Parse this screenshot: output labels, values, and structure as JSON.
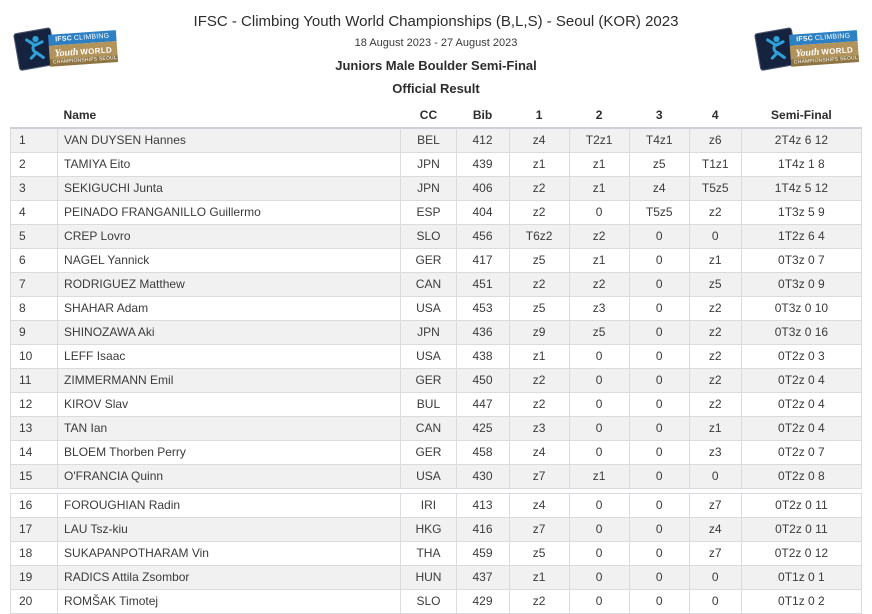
{
  "event": {
    "title": "IFSC - Climbing Youth World Championships (B,L,S) - Seoul (KOR) 2023",
    "dates": "18 August 2023 - 27 August 2023",
    "round": "Juniors Male Boulder Semi-Final",
    "result_type": "Official Result"
  },
  "logo": {
    "line1_bold": "IFSC",
    "line1_rest": "CLIMBING",
    "line2_script": "Youth",
    "line2_bold": "WORLD",
    "line3": "CHAMPIONSHIPS SEOUL 2023",
    "colors": {
      "navy": "#15233f",
      "blue_bar": "#2d80c3",
      "gold_bar": "#b2935a",
      "dark_gold_bar": "#8d7440",
      "climber_blue": "#2fa0d8"
    }
  },
  "table": {
    "columns": [
      "",
      "Name",
      "CC",
      "Bib",
      "1",
      "2",
      "3",
      "4",
      "Semi-Final"
    ],
    "row_stripe_color": "#f1f1f2",
    "groups": [
      {
        "rows": [
          {
            "rank": 1,
            "name": "VAN DUYSEN Hannes",
            "cc": "BEL",
            "bib": "412",
            "p1": "z4",
            "p2": "T2z1",
            "p3": "T4z1",
            "p4": "z6",
            "semi": "2T4z 6 12"
          },
          {
            "rank": 2,
            "name": "TAMIYA Eito",
            "cc": "JPN",
            "bib": "439",
            "p1": "z1",
            "p2": "z1",
            "p3": "z5",
            "p4": "T1z1",
            "semi": "1T4z 1 8"
          },
          {
            "rank": 3,
            "name": "SEKIGUCHI Junta",
            "cc": "JPN",
            "bib": "406",
            "p1": "z2",
            "p2": "z1",
            "p3": "z4",
            "p4": "T5z5",
            "semi": "1T4z 5 12"
          },
          {
            "rank": 4,
            "name": "PEINADO FRANGANILLO Guillermo",
            "cc": "ESP",
            "bib": "404",
            "p1": "z2",
            "p2": "0",
            "p3": "T5z5",
            "p4": "z2",
            "semi": "1T3z 5 9"
          },
          {
            "rank": 5,
            "name": "CREP Lovro",
            "cc": "SLO",
            "bib": "456",
            "p1": "T6z2",
            "p2": "z2",
            "p3": "0",
            "p4": "0",
            "semi": "1T2z 6 4"
          },
          {
            "rank": 6,
            "name": "NAGEL Yannick",
            "cc": "GER",
            "bib": "417",
            "p1": "z5",
            "p2": "z1",
            "p3": "0",
            "p4": "z1",
            "semi": "0T3z 0 7"
          },
          {
            "rank": 7,
            "name": "RODRIGUEZ Matthew",
            "cc": "CAN",
            "bib": "451",
            "p1": "z2",
            "p2": "z2",
            "p3": "0",
            "p4": "z5",
            "semi": "0T3z 0 9"
          },
          {
            "rank": 8,
            "name": "SHAHAR Adam",
            "cc": "USA",
            "bib": "453",
            "p1": "z5",
            "p2": "z3",
            "p3": "0",
            "p4": "z2",
            "semi": "0T3z 0 10"
          },
          {
            "rank": 9,
            "name": "SHINOZAWA Aki",
            "cc": "JPN",
            "bib": "436",
            "p1": "z9",
            "p2": "z5",
            "p3": "0",
            "p4": "z2",
            "semi": "0T3z 0 16"
          },
          {
            "rank": 10,
            "name": "LEFF Isaac",
            "cc": "USA",
            "bib": "438",
            "p1": "z1",
            "p2": "0",
            "p3": "0",
            "p4": "z2",
            "semi": "0T2z 0 3"
          },
          {
            "rank": 11,
            "name": "ZIMMERMANN Emil",
            "cc": "GER",
            "bib": "450",
            "p1": "z2",
            "p2": "0",
            "p3": "0",
            "p4": "z2",
            "semi": "0T2z 0 4"
          },
          {
            "rank": 12,
            "name": "KIROV Slav",
            "cc": "BUL",
            "bib": "447",
            "p1": "z2",
            "p2": "0",
            "p3": "0",
            "p4": "z2",
            "semi": "0T2z 0 4"
          },
          {
            "rank": 13,
            "name": "TAN Ian",
            "cc": "CAN",
            "bib": "425",
            "p1": "z3",
            "p2": "0",
            "p3": "0",
            "p4": "z1",
            "semi": "0T2z 0 4"
          },
          {
            "rank": 14,
            "name": "BLOEM Thorben Perry",
            "cc": "GER",
            "bib": "458",
            "p1": "z4",
            "p2": "0",
            "p3": "0",
            "p4": "z3",
            "semi": "0T2z 0 7"
          },
          {
            "rank": 15,
            "name": "O'FRANCIA Quinn",
            "cc": "USA",
            "bib": "430",
            "p1": "z7",
            "p2": "z1",
            "p3": "0",
            "p4": "0",
            "semi": "0T2z 0 8"
          }
        ]
      },
      {
        "rows": [
          {
            "rank": 16,
            "name": "FOROUGHIAN Radin",
            "cc": "IRI",
            "bib": "413",
            "p1": "z4",
            "p2": "0",
            "p3": "0",
            "p4": "z7",
            "semi": "0T2z 0 11"
          },
          {
            "rank": 17,
            "name": "LAU Tsz-kiu",
            "cc": "HKG",
            "bib": "416",
            "p1": "z7",
            "p2": "0",
            "p3": "0",
            "p4": "z4",
            "semi": "0T2z 0 11"
          },
          {
            "rank": 18,
            "name": "SUKAPANPOTHARAM Vin",
            "cc": "THA",
            "bib": "459",
            "p1": "z5",
            "p2": "0",
            "p3": "0",
            "p4": "z7",
            "semi": "0T2z 0 12"
          },
          {
            "rank": 19,
            "name": "RADICS Attila Zsombor",
            "cc": "HUN",
            "bib": "437",
            "p1": "z1",
            "p2": "0",
            "p3": "0",
            "p4": "0",
            "semi": "0T1z 0 1"
          },
          {
            "rank": 20,
            "name": "ROMŠAK Timotej",
            "cc": "SLO",
            "bib": "429",
            "p1": "z2",
            "p2": "0",
            "p3": "0",
            "p4": "0",
            "semi": "0T1z 0 2"
          }
        ]
      }
    ]
  }
}
